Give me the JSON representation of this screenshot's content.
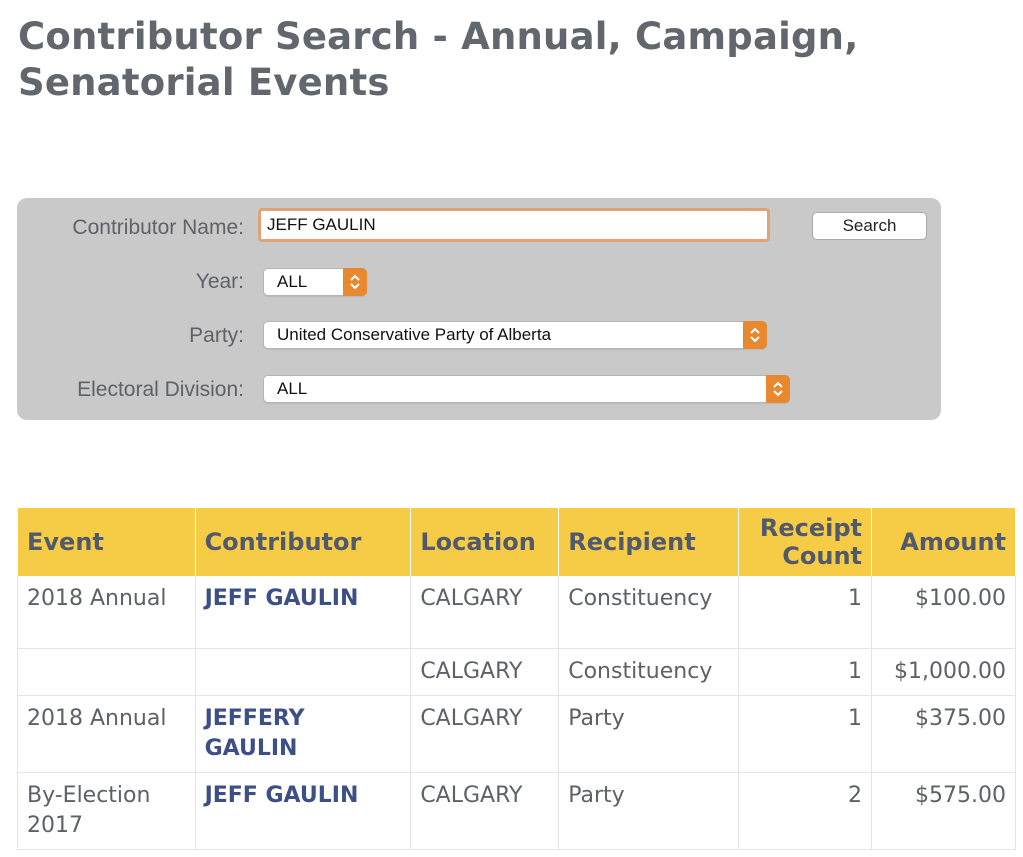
{
  "page": {
    "title": "Contributor Search - Annual, Campaign, Senatorial Events"
  },
  "search_form": {
    "contributor_name_label": "Contributor Name:",
    "contributor_name_value": "JEFF GAULIN",
    "search_button_label": "Search",
    "year_label": "Year:",
    "year_selected": "ALL",
    "party_label": "Party:",
    "party_selected": "United Conservative Party of Alberta",
    "division_label": "Electoral Division:",
    "division_selected": "ALL"
  },
  "results": {
    "headers": {
      "event": "Event",
      "contributor": "Contributor",
      "location": "Location",
      "recipient": "Recipient",
      "receipt_count": "Receipt Count",
      "amount": "Amount"
    },
    "rows": [
      {
        "event": "2018 Annual",
        "contributor": "JEFF GAULIN",
        "location": "CALGARY",
        "recipient": "Constituency",
        "receipt_count": "1",
        "amount": "$100.00"
      },
      {
        "event": "",
        "contributor": "",
        "location": "CALGARY",
        "recipient": "Constituency",
        "receipt_count": "1",
        "amount": "$1,000.00"
      },
      {
        "event": "2018 Annual",
        "contributor": "JEFFERY GAULIN",
        "location": "CALGARY",
        "recipient": "Party",
        "receipt_count": "1",
        "amount": "$375.00"
      },
      {
        "event": "By-Election 2017",
        "contributor": "JEFF GAULIN",
        "location": "CALGARY",
        "recipient": "Party",
        "receipt_count": "2",
        "amount": "$575.00"
      }
    ]
  },
  "colors": {
    "header_background": "#f6cb45",
    "panel_background": "#c9c9c9",
    "select_accent": "#e8892f",
    "contributor_link": "#3c4f86"
  },
  "icons": {
    "select_arrow": "chevron-up-down-icon"
  }
}
